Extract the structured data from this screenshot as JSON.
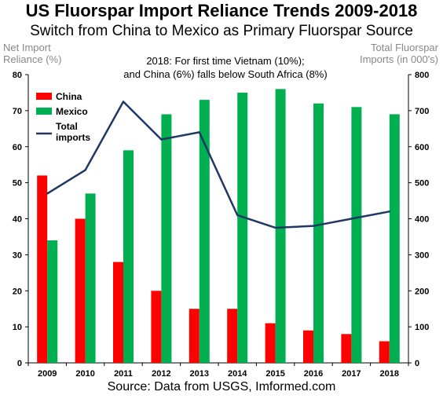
{
  "chart_data": {
    "type": "bar",
    "title": "US Fluorspar Import Reliance Trends 2009-2018",
    "subtitle": "Switch from China to Mexico as Primary Fluorspar Source",
    "annotation": [
      "2018: For first time Vietnam (10%);",
      "and China (6%) falls below South Africa (8%)"
    ],
    "ylabel_left": [
      "Net Import",
      "Reliance (%)"
    ],
    "ylabel_right": [
      "Total Fluorspar",
      "Imports (in 000's)"
    ],
    "source": "Source: Data from USGS, Imformed.com",
    "categories": [
      "2009",
      "2010",
      "2011",
      "2012",
      "2013",
      "2014",
      "2015",
      "2016",
      "2017",
      "2018"
    ],
    "ylim_left": [
      0,
      80
    ],
    "ylim_right": [
      0,
      800
    ],
    "yticks_left": [
      "0",
      "10",
      "20",
      "30",
      "40",
      "50",
      "60",
      "70",
      "80"
    ],
    "yticks_right": [
      "0",
      "100",
      "200",
      "300",
      "400",
      "500",
      "600",
      "700",
      "800"
    ],
    "series": [
      {
        "name": "China",
        "type": "bar",
        "axis": "left",
        "color": "#ff0000",
        "values": [
          52,
          40,
          28,
          20,
          15,
          15,
          11,
          9,
          8,
          6
        ]
      },
      {
        "name": "Mexico",
        "type": "bar",
        "axis": "left",
        "color": "#00b050",
        "values": [
          34,
          47,
          59,
          69,
          73,
          75,
          76,
          72,
          71,
          69
        ]
      },
      {
        "name": "Total imports",
        "type": "line",
        "axis": "right",
        "color": "#1f3864",
        "legend_lines": [
          "Total",
          "imports"
        ],
        "values": [
          470,
          535,
          725,
          620,
          640,
          410,
          375,
          380,
          400,
          420
        ]
      }
    ],
    "grid": false,
    "legend_position": "top-left"
  }
}
